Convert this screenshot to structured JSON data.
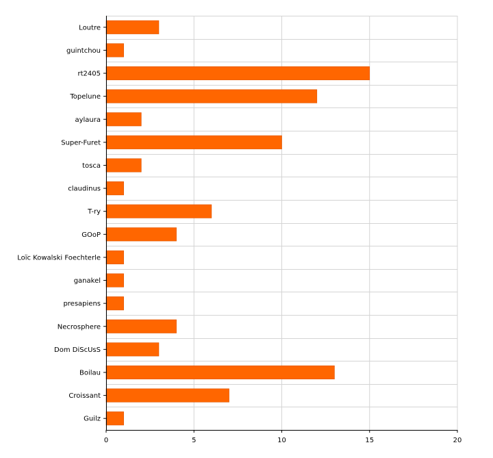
{
  "chart_data": {
    "type": "bar",
    "orientation": "horizontal",
    "categories": [
      "Loutre",
      "guintchou",
      "rt2405",
      "Topelune",
      "aylaura",
      "Super-Furet",
      "tosca",
      "claudinus",
      "T-ry",
      "GOoP",
      "Loïc Kowalski Foechterle",
      "ganakel",
      "presapiens",
      "Necrosphere",
      "Dom DiScUsS",
      "Boilau",
      "Croissant",
      "Guilz"
    ],
    "values": [
      3,
      1,
      15,
      12,
      2,
      10,
      2,
      1,
      6,
      4,
      1,
      1,
      1,
      4,
      3,
      13,
      7,
      1
    ],
    "x_ticks": [
      "0",
      "5",
      "10",
      "15",
      "20"
    ],
    "xlim": [
      0,
      20
    ],
    "grid": true,
    "colors": {
      "bar": "#ff6600",
      "bar_edge": "#e05500",
      "grid": "#d4d4d4",
      "axis": "#000000"
    }
  }
}
